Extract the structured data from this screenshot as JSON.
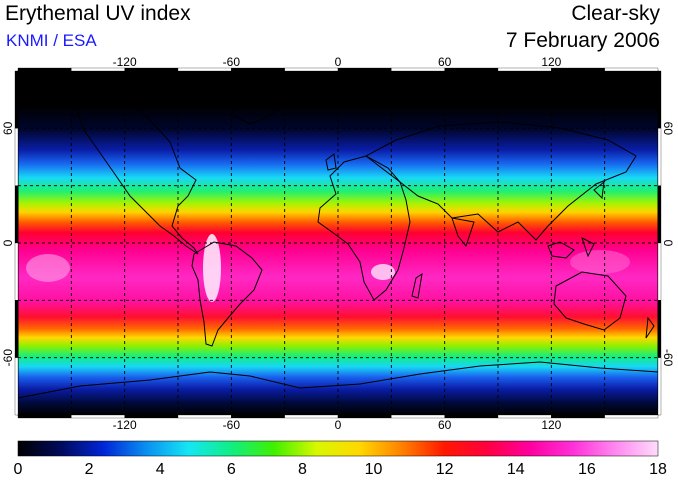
{
  "header": {
    "title": "Erythemal UV index",
    "subtitle": "KNMI / ESA",
    "sky_condition": "Clear-sky",
    "date": "7 February 2006"
  },
  "map": {
    "projection": "equirectangular",
    "lon_range": [
      -180,
      180
    ],
    "lat_range": [
      -90,
      90
    ],
    "lon_ticks": [
      -120,
      -60,
      0,
      60,
      120
    ],
    "lat_ticks": [
      60,
      0,
      -60
    ],
    "lon_labels": [
      "-120",
      "-60",
      "0",
      "60",
      "120"
    ],
    "lat_labels_left": [
      "60",
      "0",
      "-60"
    ],
    "lat_labels_right": [
      "60",
      "0",
      "-60"
    ],
    "grid_interval_deg": 30,
    "grid_style": "dashed"
  },
  "colorbar": {
    "min": 0,
    "max": 18,
    "tick_labels": [
      "0",
      "2",
      "4",
      "6",
      "8",
      "10",
      "12",
      "14",
      "16",
      "18"
    ],
    "colors": [
      "#000000",
      "#000a5a",
      "#0025d6",
      "#0a8ff0",
      "#16e6f4",
      "#10ee84",
      "#40f000",
      "#d8f800",
      "#ffd800",
      "#ff8000",
      "#ff1800",
      "#ff0040",
      "#ff00a0",
      "#ff30d8",
      "#ff88f0",
      "#ffdcfb"
    ]
  }
}
